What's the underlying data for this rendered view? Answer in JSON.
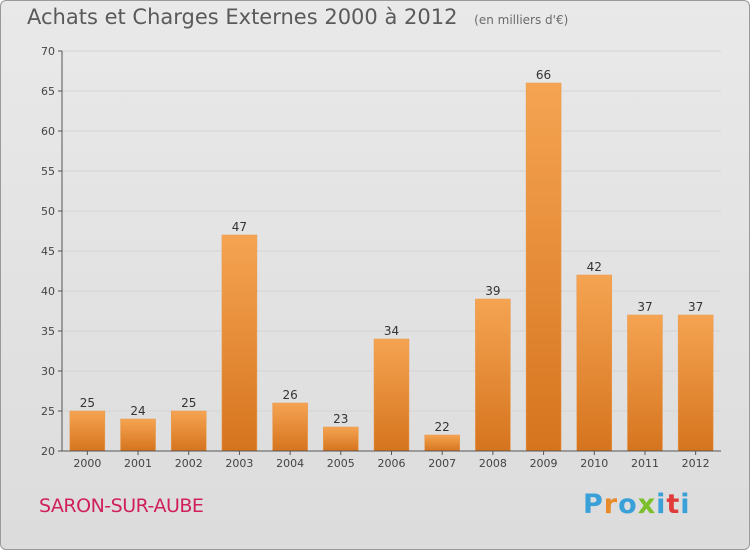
{
  "header": {
    "title": "Achats et Charges Externes 2000 à 2012",
    "subtitle": "(en milliers d'€)"
  },
  "footer": {
    "commune": "SARON-SUR-AUBE",
    "logo_letters": [
      "P",
      "r",
      "o",
      "x",
      "i",
      "t",
      "i"
    ],
    "logo_colors": [
      "#3aa0d8",
      "#e8892a",
      "#3aa0d8",
      "#7bbf2a",
      "#3aa0d8",
      "#e03a3a",
      "#3aa0d8"
    ]
  },
  "colors": {
    "bar_light": "#f5a452",
    "bar_dark": "#d6741e",
    "grid": "#d4d4d4",
    "axis": "#555555"
  },
  "chart_data": {
    "type": "bar",
    "categories": [
      "2000",
      "2001",
      "2002",
      "2003",
      "2004",
      "2005",
      "2006",
      "2007",
      "2008",
      "2009",
      "2010",
      "2011",
      "2012"
    ],
    "values": [
      25,
      24,
      25,
      47,
      26,
      23,
      34,
      22,
      39,
      66,
      42,
      37,
      37
    ],
    "ylim": [
      20,
      70
    ],
    "yticks": [
      20,
      25,
      30,
      35,
      40,
      45,
      50,
      55,
      60,
      65,
      70
    ],
    "grid": true
  }
}
